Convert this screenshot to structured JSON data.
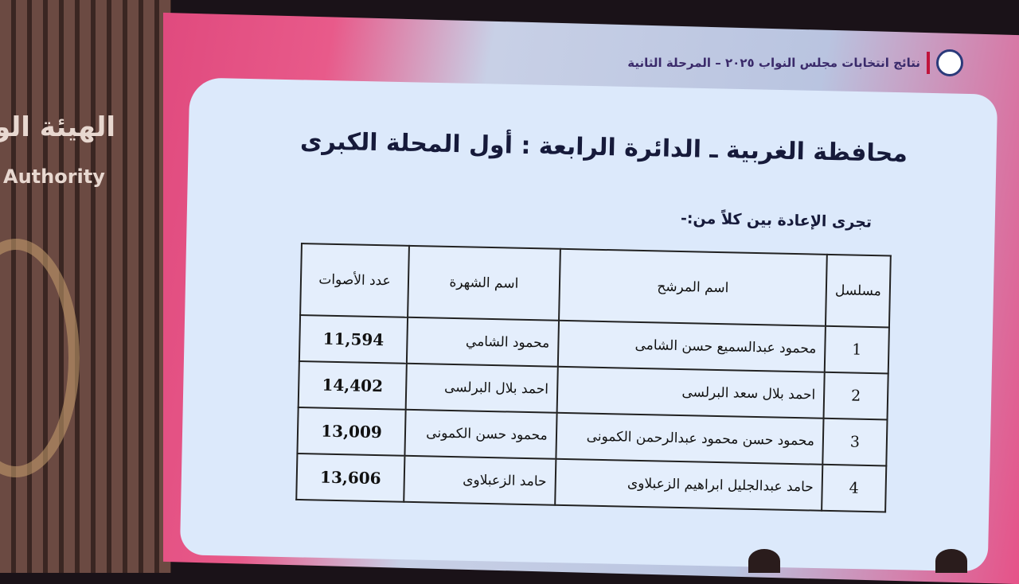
{
  "background": {
    "wall_text_ar": "الهيئة الو",
    "wall_text_en": "Authority"
  },
  "header": {
    "title": "نتائج انتخابات مجلس النواب ٢٠٢٥ – المرحلة الثانية"
  },
  "slide": {
    "title": "محافظة الغربية ـ الدائرة الرابعة : أول المحلة الكبرى",
    "subtitle": "تجرى الإعادة بين كلاً من:-",
    "table": {
      "headers": [
        "مسلسل",
        "اسم المرشح",
        "اسم الشهرة",
        "عدد الأصوات"
      ],
      "rows": [
        [
          "1",
          "محمود عبدالسميع حسن الشامى",
          "محمود الشامي",
          "11,594"
        ],
        [
          "2",
          "احمد بلال سعد البرلسى",
          "احمد بلال البرلسى",
          "14,402"
        ],
        [
          "3",
          "محمود حسن محمود عبدالرحمن الكمونى",
          "محمود حسن الكمونى",
          "13,009"
        ],
        [
          "4",
          "حامد عبدالجليل ابراهيم الزعبلاوى",
          "حامد الزعبلاوى",
          "13,606"
        ]
      ]
    }
  },
  "colors": {
    "accent": "#e04a7e",
    "slide_bg": "#dce9fb",
    "text": "#161a3a"
  }
}
